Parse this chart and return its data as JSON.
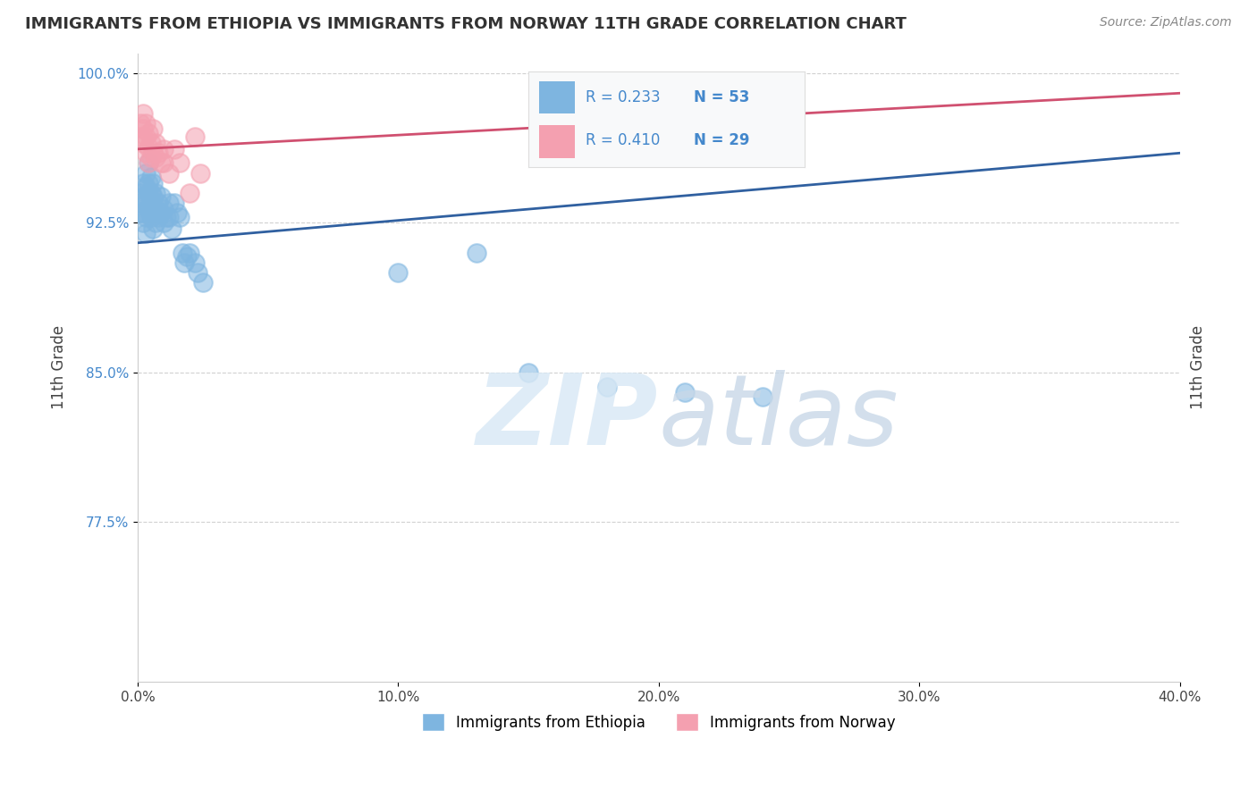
{
  "title": "IMMIGRANTS FROM ETHIOPIA VS IMMIGRANTS FROM NORWAY 11TH GRADE CORRELATION CHART",
  "source": "Source: ZipAtlas.com",
  "ylabel": "11th Grade",
  "xlim": [
    0.0,
    0.4
  ],
  "ylim": [
    0.695,
    1.01
  ],
  "xtick_labels": [
    "0.0%",
    "10.0%",
    "20.0%",
    "30.0%",
    "40.0%"
  ],
  "xtick_vals": [
    0.0,
    0.1,
    0.2,
    0.3,
    0.4
  ],
  "ytick_labels": [
    "77.5%",
    "85.0%",
    "92.5%",
    "100.0%"
  ],
  "ytick_vals": [
    0.775,
    0.85,
    0.925,
    1.0
  ],
  "legend_blue_label": "Immigrants from Ethiopia",
  "legend_pink_label": "Immigrants from Norway",
  "R_blue": 0.233,
  "N_blue": 53,
  "R_pink": 0.41,
  "N_pink": 29,
  "blue_color": "#7EB5E0",
  "pink_color": "#F4A0B0",
  "blue_line_color": "#3060A0",
  "pink_line_color": "#D05070",
  "blue_line_x0": 0.0,
  "blue_line_y0": 0.915,
  "blue_line_x1": 0.4,
  "blue_line_y1": 0.96,
  "pink_line_x0": 0.0,
  "pink_line_y0": 0.962,
  "pink_line_x1": 0.4,
  "pink_line_y1": 0.99,
  "blue_x": [
    0.001,
    0.001,
    0.001,
    0.002,
    0.002,
    0.002,
    0.002,
    0.003,
    0.003,
    0.003,
    0.003,
    0.003,
    0.004,
    0.004,
    0.004,
    0.004,
    0.005,
    0.005,
    0.005,
    0.005,
    0.006,
    0.006,
    0.006,
    0.006,
    0.007,
    0.007,
    0.007,
    0.008,
    0.008,
    0.009,
    0.009,
    0.01,
    0.01,
    0.011,
    0.012,
    0.012,
    0.013,
    0.014,
    0.015,
    0.016,
    0.017,
    0.018,
    0.019,
    0.02,
    0.022,
    0.023,
    0.025,
    0.1,
    0.13,
    0.15,
    0.18,
    0.21,
    0.24
  ],
  "blue_y": [
    0.94,
    0.93,
    0.935,
    0.945,
    0.938,
    0.93,
    0.925,
    0.95,
    0.943,
    0.935,
    0.928,
    0.92,
    0.955,
    0.945,
    0.94,
    0.932,
    0.948,
    0.94,
    0.935,
    0.928,
    0.945,
    0.938,
    0.93,
    0.922,
    0.94,
    0.932,
    0.925,
    0.935,
    0.928,
    0.938,
    0.93,
    0.932,
    0.925,
    0.928,
    0.935,
    0.928,
    0.922,
    0.935,
    0.93,
    0.928,
    0.91,
    0.905,
    0.908,
    0.91,
    0.905,
    0.9,
    0.895,
    0.9,
    0.91,
    0.85,
    0.843,
    0.84,
    0.838
  ],
  "pink_x": [
    0.001,
    0.001,
    0.002,
    0.002,
    0.002,
    0.003,
    0.003,
    0.003,
    0.004,
    0.004,
    0.004,
    0.005,
    0.005,
    0.006,
    0.006,
    0.007,
    0.007,
    0.008,
    0.009,
    0.01,
    0.01,
    0.012,
    0.014,
    0.016,
    0.02,
    0.022,
    0.024,
    0.16,
    0.19
  ],
  "pink_y": [
    0.975,
    0.968,
    0.98,
    0.972,
    0.965,
    0.975,
    0.968,
    0.96,
    0.97,
    0.963,
    0.955,
    0.965,
    0.958,
    0.972,
    0.96,
    0.965,
    0.958,
    0.96,
    0.955,
    0.962,
    0.955,
    0.95,
    0.962,
    0.955,
    0.94,
    0.968,
    0.95,
    0.985,
    0.98
  ]
}
